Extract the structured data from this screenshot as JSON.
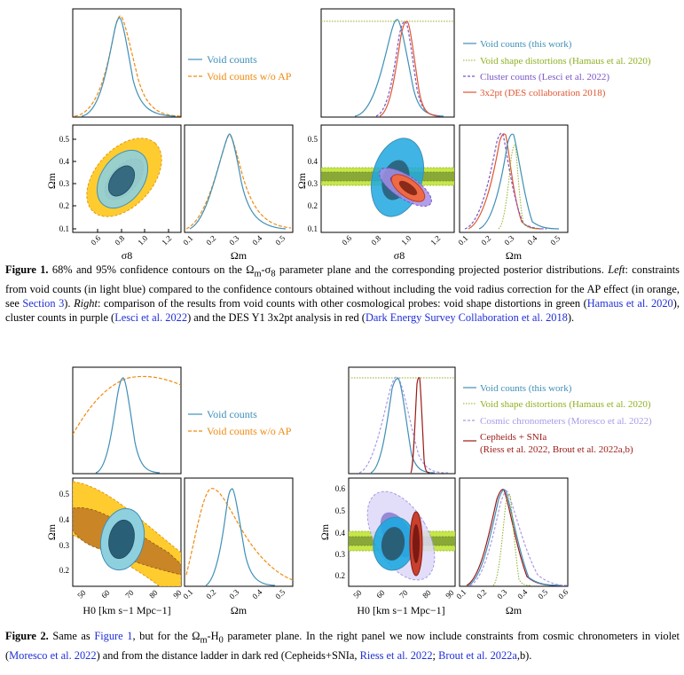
{
  "colors": {
    "void": "#3f8fb8",
    "void_fill_outer": "#8fd0de",
    "void_fill_inner": "#2a5f78",
    "noap": "#f08a10",
    "noap_fill_outer": "#ffcc30",
    "noap_fill_inner": "#c98526",
    "shape": "#8db020",
    "shape_fill": "#c6e64a",
    "cluster": "#7a55c8",
    "cluster_fill": "#a58ee8",
    "des": "#e05530",
    "des_fill": "#ee6a44",
    "cc": "#a99ae8",
    "cc_fill": "#ddd8f8",
    "cepheid": "#9a1a16",
    "cepheid_fill": "#c8402e",
    "link": "#1f2fd6",
    "deep_sky": "#1fa8e0"
  },
  "figure1": {
    "left_legend": [
      "Void counts",
      "Void counts w/o AP"
    ],
    "right_legend": [
      "Void counts (this work)",
      "Void shape distortions (Hamaus et al. 2020)",
      "Cluster counts (Lesci et al. 2022)",
      "3x2pt (DES collaboration 2018)"
    ],
    "xlabel_sigma8": "σ8",
    "xlabel_om": "Ωm",
    "ylabel_om": "Ωm",
    "xticks_sigma8": [
      "0.6",
      "0.8",
      "1.0",
      "1.2"
    ],
    "xticks_om": [
      "0.1",
      "0.2",
      "0.3",
      "0.4",
      "0.5"
    ],
    "yticks_om": [
      "0.1",
      "0.2",
      "0.3",
      "0.4",
      "0.5"
    ],
    "caption": {
      "label": "Figure 1.",
      "t1": " 68% and 95% confidence contours on the Ω",
      "t2": "-σ",
      "t3": " parameter plane and the corresponding projected posterior distributions. ",
      "left": "Left",
      "t4": ": constraints from void counts (in light blue) compared to the confidence contours obtained without including the void radius correction for the AP effect (in orange, see ",
      "link1": "Section 3",
      "t5": "). ",
      "right": "Right",
      "t6": ": comparison of the results from void counts with other cosmological probes: void shape distortions in green (",
      "link2": "Hamaus et al. 2020",
      "t7": "), cluster counts in purple (",
      "link3": "Lesci et al. 2022",
      "t8": ") and the DES Y1 3x2pt analysis in red (",
      "link4": "Dark Energy Survey Collaboration et al. 2018",
      "t9": ")."
    }
  },
  "figure2": {
    "left_legend": [
      "Void counts",
      "Void counts w/o AP"
    ],
    "right_legend": [
      "Void counts (this work)",
      "Void shape distortions (Hamaus et al. 2020)",
      "Cosmic chronometers (Moresco et al. 2022)",
      "Cepheids + SNIa",
      "(Riess et al. 2022, Brout et al. 2022a,b)"
    ],
    "xlabel_h0": "H0 [km s−1 Mpc−1]",
    "xlabel_om": "Ωm",
    "ylabel_om": "Ωm",
    "xticks_h0": [
      "50",
      "60",
      "70",
      "80",
      "90"
    ],
    "xticks_om_left": [
      "0.1",
      "0.2",
      "0.3",
      "0.4",
      "0.5"
    ],
    "xticks_om_right": [
      "0.1",
      "0.2",
      "0.3",
      "0.4",
      "0.5",
      "0.6"
    ],
    "yticks_om_left": [
      "0.2",
      "0.3",
      "0.4",
      "0.5"
    ],
    "yticks_om_right": [
      "0.2",
      "0.3",
      "0.4",
      "0.5",
      "0.6"
    ],
    "caption": {
      "label": "Figure 2.",
      "t1": " Same as ",
      "link1": "Figure 1",
      "t2": ", but for the Ω",
      "t3": "-H",
      "t4": " parameter plane. In the right panel we now include constraints from cosmic chronometers in violet (",
      "link2": "Moresco et al. 2022",
      "t5": ") and from the distance ladder in dark red (Cepheids+SNIa, ",
      "link3": "Riess et al. 2022",
      "t6": "; ",
      "link4": "Brout et al. 2022a",
      "t7": ",b)."
    }
  }
}
